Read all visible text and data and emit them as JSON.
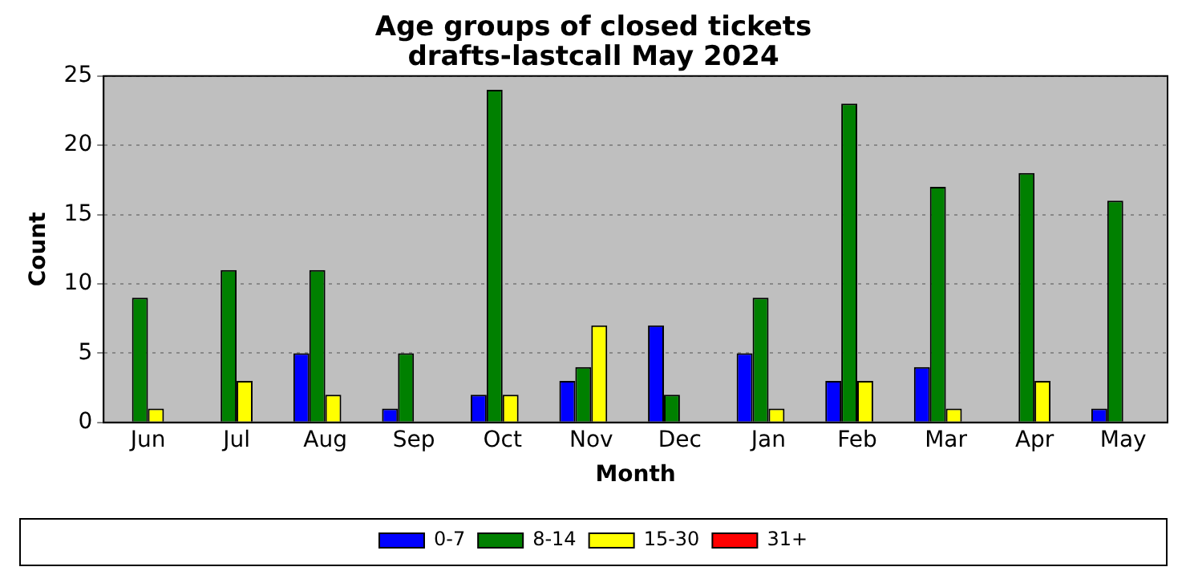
{
  "chart_data": {
    "type": "bar",
    "title": "Age groups of closed tickets",
    "subtitle": "drafts-lastcall May 2024",
    "xlabel": "Month",
    "ylabel": "Count",
    "categories": [
      "Jun",
      "Jul",
      "Aug",
      "Sep",
      "Oct",
      "Nov",
      "Dec",
      "Jan",
      "Feb",
      "Mar",
      "Apr",
      "May"
    ],
    "series": [
      {
        "name": "0-7",
        "color": "#0000ff",
        "values": [
          0,
          0,
          5,
          1,
          2,
          3,
          7,
          5,
          3,
          4,
          0,
          1
        ]
      },
      {
        "name": "8-14",
        "color": "#008000",
        "values": [
          9,
          11,
          11,
          5,
          24,
          4,
          2,
          9,
          23,
          17,
          18,
          16
        ]
      },
      {
        "name": "15-30",
        "color": "#ffff00",
        "values": [
          1,
          3,
          2,
          0,
          2,
          7,
          0,
          1,
          3,
          1,
          3,
          0
        ]
      },
      {
        "name": "31+",
        "color": "#ff0000",
        "values": [
          0,
          0,
          0,
          0,
          0,
          0,
          0,
          0,
          0,
          0,
          0,
          0
        ]
      }
    ],
    "ylim": [
      0,
      25
    ],
    "yticks": [
      0,
      5,
      10,
      15,
      20,
      25
    ],
    "grid": "y",
    "legend": "bottom"
  }
}
